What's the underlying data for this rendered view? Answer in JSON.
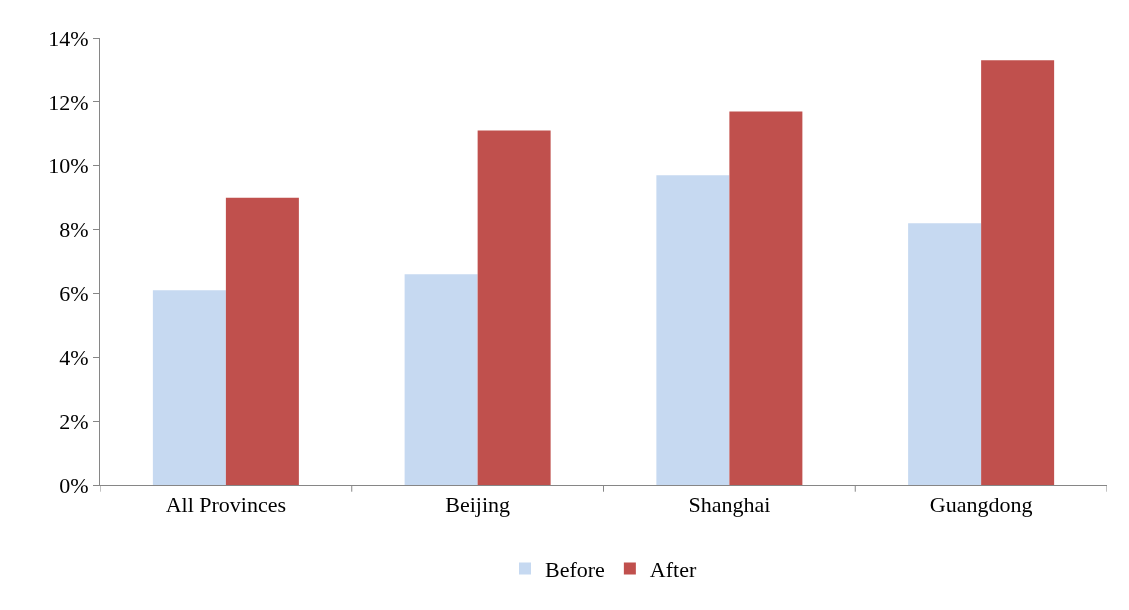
{
  "chart_data": {
    "type": "bar",
    "categories": [
      "All Provinces",
      "Beijing",
      "Shanghai",
      "Guangdong"
    ],
    "series": [
      {
        "name": "Before",
        "color": "#c6d9f1",
        "values": [
          6.1,
          6.6,
          9.7,
          8.2
        ]
      },
      {
        "name": "After",
        "color": "#c0504d",
        "values": [
          9.0,
          11.1,
          11.7,
          13.3
        ]
      }
    ],
    "ylim": [
      0,
      14
    ],
    "yticks": [
      {
        "value": 0,
        "label": "0%"
      },
      {
        "value": 2,
        "label": "2%"
      },
      {
        "value": 4,
        "label": "4%"
      },
      {
        "value": 6,
        "label": "6%"
      },
      {
        "value": 8,
        "label": "8%"
      },
      {
        "value": 10,
        "label": "10%"
      },
      {
        "value": 12,
        "label": "12%"
      },
      {
        "value": 14,
        "label": "14%"
      }
    ],
    "grid": false,
    "legend": "bottom"
  }
}
